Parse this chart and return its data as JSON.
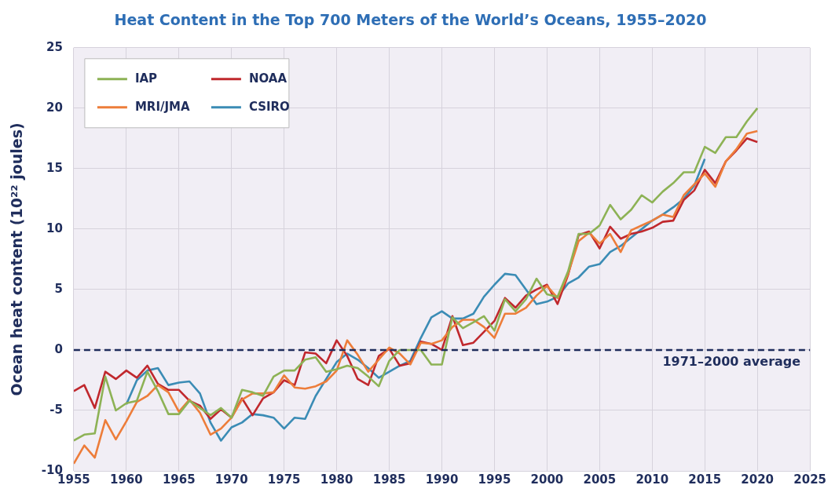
{
  "chart_data": {
    "type": "line",
    "title": "Heat Content in the Top 700 Meters of the World’s Oceans, 1955–2020",
    "ylabel": "Ocean heat content (10²² joules)",
    "x": [
      1955,
      1956,
      1957,
      1958,
      1959,
      1960,
      1961,
      1962,
      1963,
      1964,
      1965,
      1966,
      1967,
      1968,
      1969,
      1970,
      1971,
      1972,
      1973,
      1974,
      1975,
      1976,
      1977,
      1978,
      1979,
      1980,
      1981,
      1982,
      1983,
      1984,
      1985,
      1986,
      1987,
      1988,
      1989,
      1990,
      1991,
      1992,
      1993,
      1994,
      1995,
      1996,
      1997,
      1998,
      1999,
      2000,
      2001,
      2002,
      2003,
      2004,
      2005,
      2006,
      2007,
      2008,
      2009,
      2010,
      2011,
      2012,
      2013,
      2014,
      2015,
      2016,
      2017,
      2018,
      2019,
      2020
    ],
    "series": [
      {
        "name": "IAP",
        "color": "#8db255",
        "values": [
          -7.5,
          -7.0,
          -6.9,
          -2.2,
          -5.0,
          -4.4,
          -4.2,
          -1.8,
          -3.4,
          -5.3,
          -5.3,
          -4.2,
          -4.8,
          -5.4,
          -4.8,
          -5.6,
          -3.3,
          -3.5,
          -3.8,
          -2.2,
          -1.7,
          -1.7,
          -0.8,
          -0.6,
          -1.8,
          -1.6,
          -1.3,
          -1.5,
          -2.2,
          -3.0,
          -0.9,
          0.0,
          0.0,
          0.0,
          -1.2,
          -1.2,
          2.7,
          1.8,
          2.3,
          2.8,
          1.6,
          4.2,
          3.2,
          4.2,
          5.9,
          4.6,
          4.4,
          6.5,
          9.6,
          9.6,
          10.3,
          12.0,
          10.8,
          11.6,
          12.8,
          12.2,
          13.1,
          13.8,
          14.7,
          14.7,
          16.8,
          16.3,
          17.6,
          17.6,
          18.9,
          20.0
        ]
      },
      {
        "name": "MRI/JMA",
        "color": "#ed7d3a",
        "values": [
          -9.4,
          -7.9,
          -8.9,
          -5.8,
          -7.4,
          -5.9,
          -4.3,
          -3.8,
          -2.9,
          -3.5,
          -5.1,
          -4.1,
          -5.2,
          -7.0,
          -6.5,
          -5.6,
          -4.1,
          -3.6,
          -3.6,
          -3.5,
          -2.1,
          -3.1,
          -3.2,
          -3.0,
          -2.6,
          -1.7,
          0.8,
          -0.4,
          -1.8,
          -0.8,
          0.2,
          -0.3,
          -1.2,
          0.6,
          0.5,
          0.8,
          1.9,
          2.5,
          2.5,
          1.9,
          1.0,
          3.0,
          3.0,
          3.5,
          4.5,
          5.3,
          4.3,
          6.3,
          9.0,
          9.7,
          8.8,
          9.6,
          8.1,
          9.9,
          10.3,
          10.7,
          11.2,
          11.0,
          12.8,
          13.7,
          14.6,
          13.5,
          15.6,
          16.6,
          17.9,
          18.1
        ]
      },
      {
        "name": "NOAA",
        "color": "#c0282d",
        "values": [
          -3.4,
          -2.9,
          -4.8,
          -1.8,
          -2.4,
          -1.7,
          -2.3,
          -1.3,
          -2.8,
          -3.3,
          -3.3,
          -4.2,
          -4.6,
          -5.7,
          -4.9,
          -5.6,
          -4.0,
          -5.4,
          -4.0,
          -3.5,
          -2.5,
          -2.9,
          -0.2,
          -0.3,
          -1.1,
          0.8,
          -0.5,
          -2.4,
          -2.9,
          -0.5,
          0.1,
          -1.3,
          -1.1,
          0.7,
          0.5,
          0.0,
          2.8,
          0.4,
          0.6,
          1.5,
          2.4,
          4.3,
          3.5,
          4.5,
          5.0,
          5.4,
          3.8,
          6.2,
          9.5,
          9.8,
          8.4,
          10.2,
          9.2,
          9.6,
          9.8,
          10.1,
          10.6,
          10.7,
          12.4,
          13.2,
          14.9,
          13.8,
          15.6,
          16.5,
          17.5,
          17.2
        ]
      },
      {
        "name": "CSIRO",
        "color": "#3b8cb5",
        "values": [
          null,
          null,
          null,
          null,
          null,
          -4.5,
          -2.5,
          -1.7,
          -1.5,
          -2.9,
          -2.7,
          -2.6,
          -3.6,
          -6.0,
          -7.5,
          -6.4,
          -6.0,
          -5.3,
          -5.4,
          -5.6,
          -6.5,
          -5.6,
          -5.7,
          -3.8,
          -2.4,
          -1.0,
          -0.3,
          -0.8,
          -1.5,
          -2.3,
          -1.8,
          -1.3,
          -0.9,
          1.0,
          2.7,
          3.2,
          2.6,
          2.6,
          3.0,
          4.4,
          5.4,
          6.3,
          6.2,
          5.0,
          3.8,
          4.0,
          4.4,
          5.5,
          6.0,
          6.9,
          7.1,
          8.1,
          8.6,
          9.3,
          10.0,
          10.7,
          11.2,
          11.8,
          12.5,
          13.6,
          15.8,
          null,
          null,
          null,
          null,
          null
        ]
      }
    ],
    "xlim": [
      1955,
      2025
    ],
    "xticks": [
      1955,
      1960,
      1965,
      1970,
      1975,
      1980,
      1985,
      1990,
      1995,
      2000,
      2005,
      2010,
      2015,
      2020,
      2025
    ],
    "ylim": [
      -10,
      25
    ],
    "yticks": [
      -10,
      -5,
      0,
      5,
      10,
      15,
      20,
      25
    ],
    "ref_lines": [
      {
        "axis": "y",
        "value": 0,
        "label": "1971–2000 average",
        "color": "#1f2d5c",
        "line_style": "dashed"
      }
    ],
    "grid": true,
    "legend": "top left",
    "marker": "none",
    "line_style": "solid"
  }
}
